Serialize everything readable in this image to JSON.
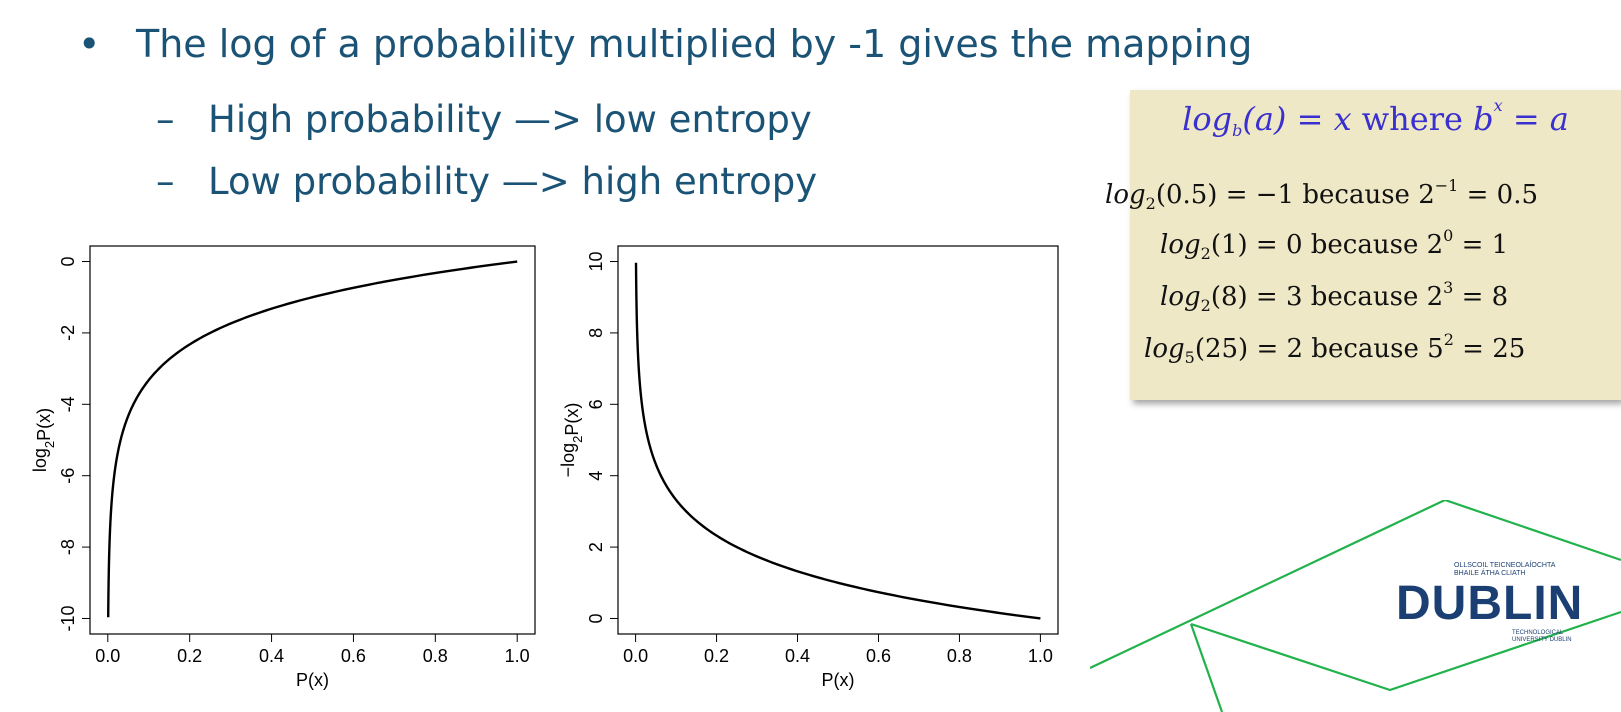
{
  "slide": {
    "bullet": "The log of a probability multiplied by -1 gives the mapping",
    "bullet_marker": "•",
    "sub_marker": "–",
    "sub1": "High probability —> low entropy",
    "sub2": "Low probability —> high entropy"
  },
  "definitions": {
    "header_lhs": "log",
    "header_sub": "b",
    "header_arg": "(a) = x",
    "header_where": " where ",
    "header_base": "b",
    "header_exp": "x",
    "header_rhs": " = a",
    "rows": [
      {
        "lhs": "log",
        "base": "2",
        "arg": "(0.5) = −1",
        "because": " because ",
        "pow_base": "2",
        "pow_exp": "−1",
        "result": " = 0.5"
      },
      {
        "lhs": "log",
        "base": "2",
        "arg": "(1) = 0",
        "because": " because ",
        "pow_base": "2",
        "pow_exp": "0",
        "result": " = 1"
      },
      {
        "lhs": "log",
        "base": "2",
        "arg": "(8) = 3",
        "because": " because ",
        "pow_base": "2",
        "pow_exp": "3",
        "result": " = 8"
      },
      {
        "lhs": "log",
        "base": "5",
        "arg": "(25) = 2",
        "because": " because ",
        "pow_base": "5",
        "pow_exp": "2",
        "result": " = 25"
      }
    ]
  },
  "chart_data": [
    {
      "type": "line",
      "function": "log2(p)",
      "xlabel": "P(x)",
      "ylabel": "log2P(x)",
      "xlim": [
        0.0,
        1.0
      ],
      "ylim": [
        -10,
        0
      ],
      "xticks": [
        "0.0",
        "0.2",
        "0.4",
        "0.6",
        "0.8",
        "1.0"
      ],
      "yticks": [
        "0",
        "-2",
        "-4",
        "-6",
        "-8",
        "-10"
      ],
      "ytick_values": [
        0,
        -2,
        -4,
        -6,
        -8,
        -10
      ],
      "xtick_values": [
        0,
        0.2,
        0.4,
        0.6,
        0.8,
        1.0
      ],
      "x_range": [
        0.001,
        1.0
      ],
      "grid": false,
      "line_color": "#000000"
    },
    {
      "type": "line",
      "function": "-log2(p)",
      "xlabel": "P(x)",
      "ylabel": "−log2P(x)",
      "xlim": [
        0.0,
        1.0
      ],
      "ylim": [
        0,
        10
      ],
      "xticks": [
        "0.0",
        "0.2",
        "0.4",
        "0.6",
        "0.8",
        "1.0"
      ],
      "yticks": [
        "0",
        "2",
        "4",
        "6",
        "8",
        "10"
      ],
      "ytick_values": [
        0,
        2,
        4,
        6,
        8,
        10
      ],
      "xtick_values": [
        0,
        0.2,
        0.4,
        0.6,
        0.8,
        1.0
      ],
      "x_range": [
        0.001,
        1.0
      ],
      "grid": false,
      "line_color": "#000000"
    }
  ],
  "logo": {
    "top_text_1": "OLLSCOIL TEICNEOLAÍOCHTA",
    "top_text_2": "BHAILE ÁTHA CLIATH",
    "word": "DUBLIN",
    "bottom_text_1": "TECHNOLOGICAL",
    "bottom_text_2": "UNIVERSITY DUBLIN"
  },
  "colors": {
    "text": "#1a5375",
    "box_bg": "#eee8c6",
    "header_math": "#3a2fcf",
    "deco_green": "#22b24c",
    "logo_blue": "#1b3f73"
  }
}
